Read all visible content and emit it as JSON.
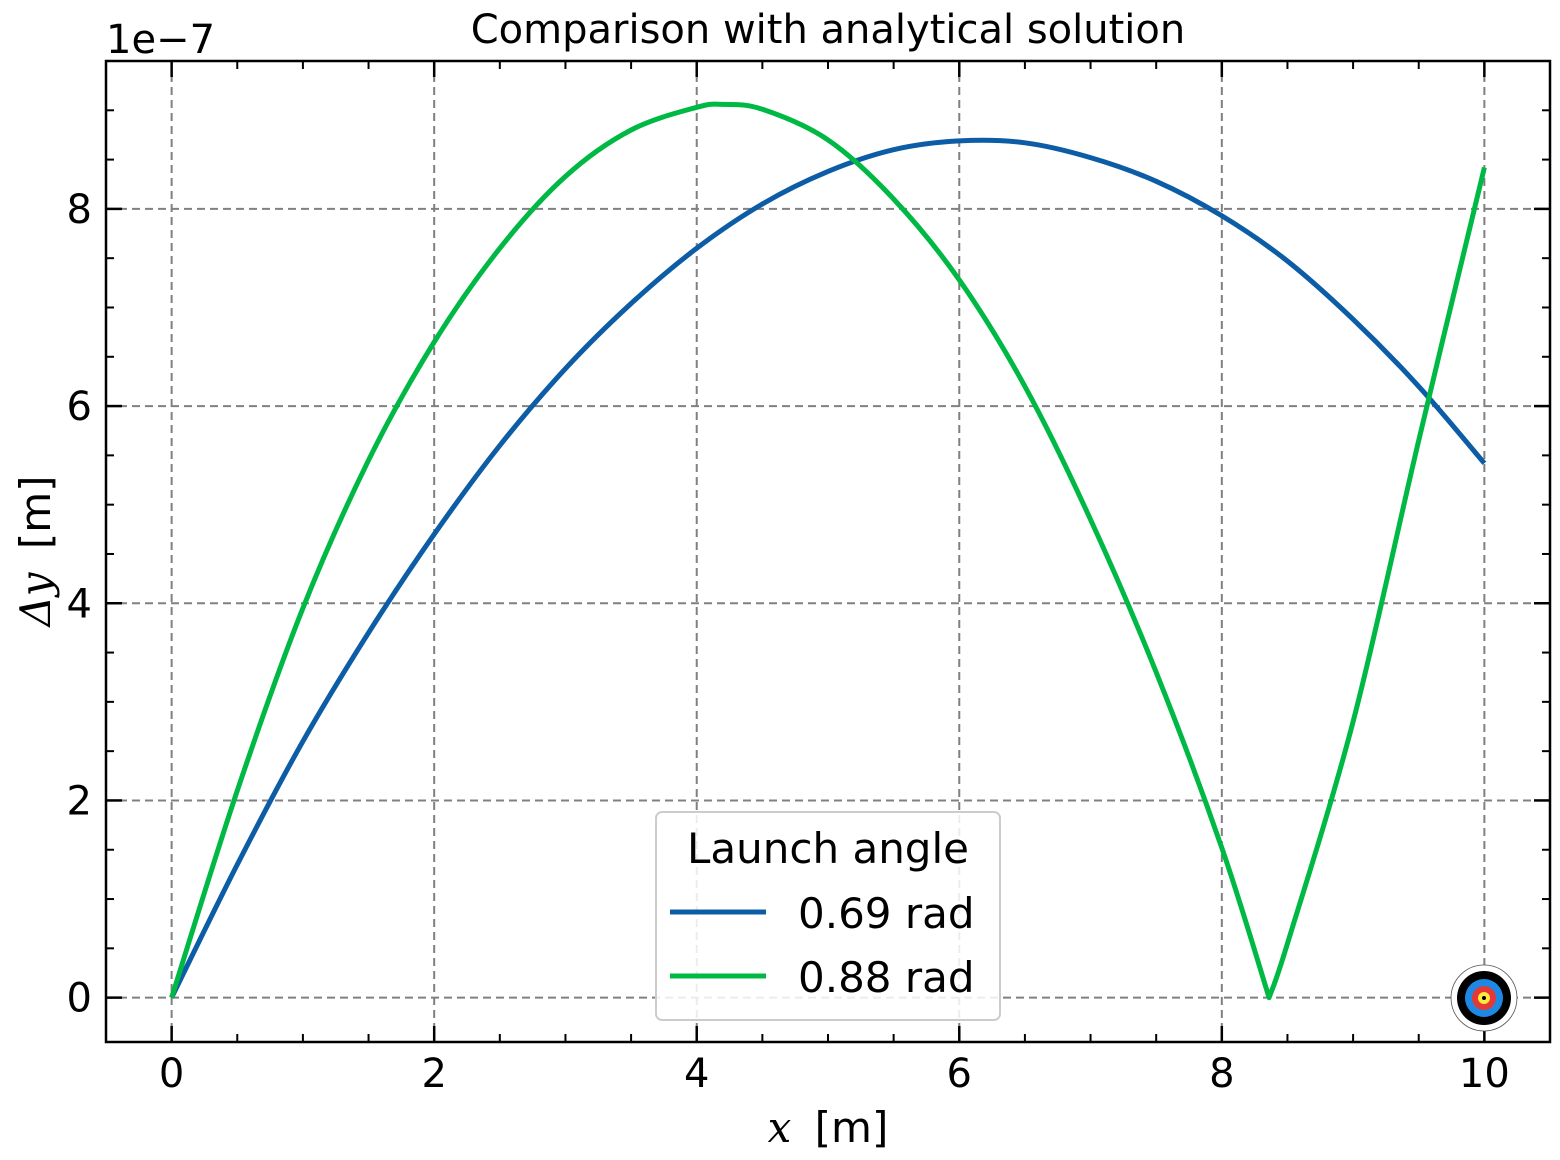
{
  "chart_data": {
    "type": "line",
    "title": "Comparison with analytical solution",
    "xlabel_symbol": "x",
    "xlabel_unit": "[m]",
    "ylabel_symbol": "Δy",
    "ylabel_unit": "[m]",
    "y_offset_label": "1e−7",
    "xlim": [
      -0.5,
      10.5
    ],
    "ylim": [
      -0.45,
      9.5
    ],
    "y_scale_factor": 1e-07,
    "x_ticks": [
      0,
      2,
      4,
      6,
      8,
      10
    ],
    "x_tick_labels": [
      "0",
      "2",
      "4",
      "6",
      "8",
      "10"
    ],
    "y_ticks": [
      0,
      2,
      4,
      6,
      8
    ],
    "y_tick_labels": [
      "0",
      "2",
      "4",
      "6",
      "8"
    ],
    "grid": true,
    "legend": {
      "title": "Launch angle",
      "placement": "lower-center"
    },
    "series": [
      {
        "name": "0.69 rad",
        "color": "#0C5DA5",
        "x": [
          0,
          0.5,
          1,
          1.5,
          2,
          2.5,
          3,
          3.5,
          4,
          4.5,
          5,
          5.5,
          6,
          6.5,
          7,
          7.5,
          8,
          8.5,
          9,
          9.5,
          10
        ],
        "y": [
          0,
          1.35,
          2.6,
          3.7,
          4.7,
          5.6,
          6.38,
          7.04,
          7.6,
          8.05,
          8.38,
          8.6,
          8.69,
          8.67,
          8.52,
          8.28,
          7.93,
          7.47,
          6.88,
          6.2,
          5.42
        ]
      },
      {
        "name": "0.88 rad",
        "color": "#00B945",
        "x": [
          0,
          0.5,
          1,
          1.5,
          2,
          2.5,
          3,
          3.5,
          4,
          4.2,
          4.5,
          5,
          5.5,
          6,
          6.5,
          7,
          7.5,
          8,
          8.36,
          8.5,
          9,
          9.5,
          10
        ],
        "y": [
          0,
          2.1,
          3.95,
          5.45,
          6.65,
          7.6,
          8.33,
          8.8,
          9.03,
          9.06,
          9.01,
          8.7,
          8.1,
          7.28,
          6.2,
          4.85,
          3.3,
          1.52,
          0,
          0.55,
          2.8,
          5.65,
          8.42
        ]
      }
    ]
  },
  "badge": {
    "name": "target-icon",
    "colors": [
      "#000000",
      "#1E88E5",
      "#E53935",
      "#FFEB3B"
    ]
  }
}
